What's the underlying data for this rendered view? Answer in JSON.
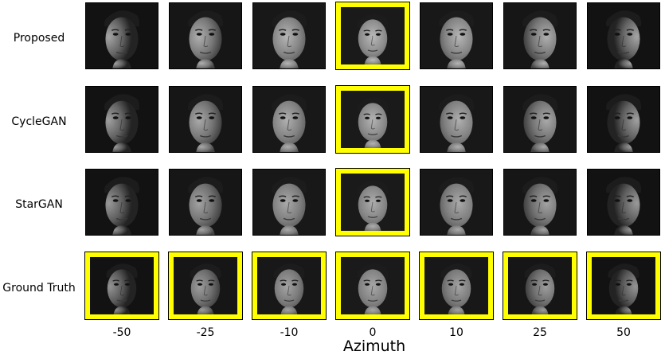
{
  "rows": [
    {
      "label": "Proposed",
      "highlight": [
        false,
        false,
        false,
        true,
        false,
        false,
        false
      ]
    },
    {
      "label": "CycleGAN",
      "highlight": [
        false,
        false,
        false,
        true,
        false,
        false,
        false
      ]
    },
    {
      "label": "StarGAN",
      "highlight": [
        false,
        false,
        false,
        true,
        false,
        false,
        false
      ]
    },
    {
      "label": "Ground Truth",
      "highlight": [
        true,
        true,
        true,
        true,
        true,
        true,
        true
      ]
    }
  ],
  "azimuths": [
    "-50",
    "-25",
    "-10",
    "0",
    "10",
    "25",
    "50"
  ],
  "azimuth_values": [
    -50,
    -25,
    -10,
    0,
    10,
    25,
    50
  ],
  "xaxis_label": "Azimuth",
  "highlight_color": "#ffff00"
}
